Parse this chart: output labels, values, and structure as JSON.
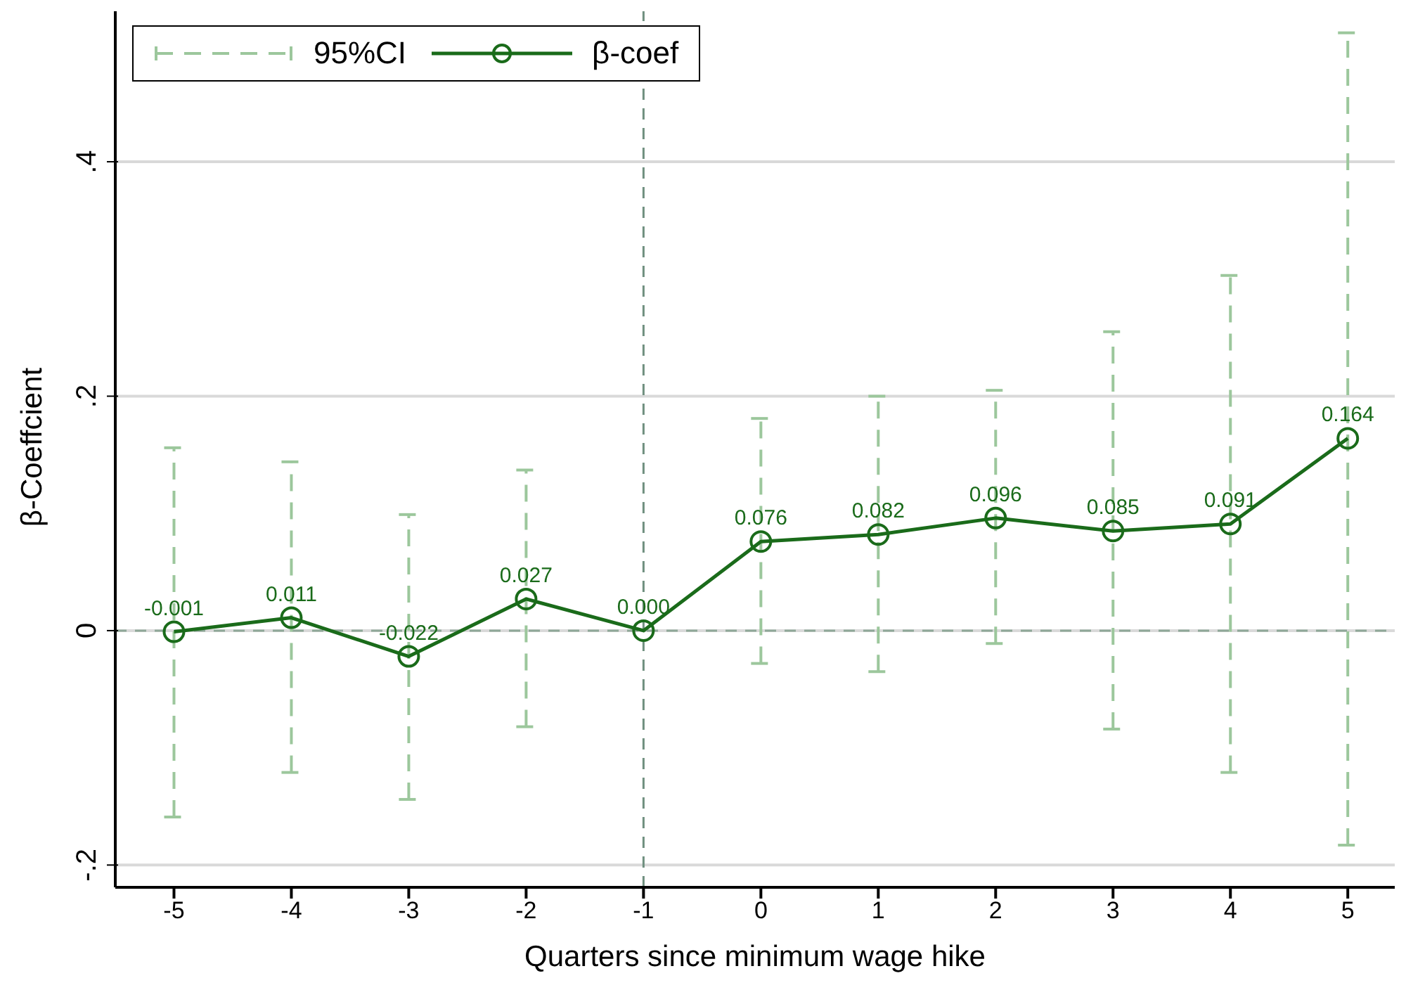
{
  "chart_data": {
    "type": "line",
    "xlabel": "Quarters since minimum wage hike",
    "ylabel": "β-Coeffcient",
    "x": [
      -5,
      -4,
      -3,
      -2,
      -1,
      0,
      1,
      2,
      3,
      4,
      5
    ],
    "series": [
      {
        "name": "β-coef",
        "color": "#1a6b1a",
        "values": [
          -0.001,
          0.011,
          -0.022,
          0.027,
          0.0,
          0.076,
          0.082,
          0.096,
          0.085,
          0.091,
          0.164
        ],
        "value_labels": [
          "-0.001",
          "0.011",
          "-0.022",
          "0.027",
          "0.000",
          "0.076",
          "0.082",
          "0.096",
          "0.085",
          "0.091",
          "0.164"
        ],
        "errors": [
          [
            -0.159,
            0.156
          ],
          [
            -0.121,
            0.144
          ],
          [
            -0.144,
            0.099
          ],
          [
            -0.082,
            0.137
          ],
          null,
          [
            -0.028,
            0.181
          ],
          [
            -0.035,
            0.2
          ],
          [
            -0.011,
            0.205
          ],
          [
            -0.084,
            0.255
          ],
          [
            -0.121,
            0.303
          ],
          [
            -0.183,
            0.51
          ]
        ]
      }
    ],
    "annotations": [
      "95%CI"
    ],
    "marker": "circle",
    "line_style": "solid",
    "legend": "top left",
    "grid": "y",
    "xlim": [
      -5.5,
      5.4
    ],
    "xticks": [
      -5,
      -4,
      -3,
      -2,
      -1,
      0,
      1,
      2,
      3,
      4,
      5
    ],
    "ylim": [
      -0.219,
      0.532
    ],
    "yticks": [
      {
        "value": -0.2,
        "label": "-.2"
      },
      0,
      {
        "value": 0.2,
        "label": ".2"
      },
      {
        "value": 0.4,
        "label": ".4"
      }
    ],
    "ref_lines": [
      {
        "axis": "x",
        "value": -1,
        "line_style": "dashed",
        "color": "#6f8f7f"
      },
      {
        "axis": "y",
        "value": 0,
        "line_style": "dashed",
        "color": "#8fa898"
      }
    ]
  }
}
